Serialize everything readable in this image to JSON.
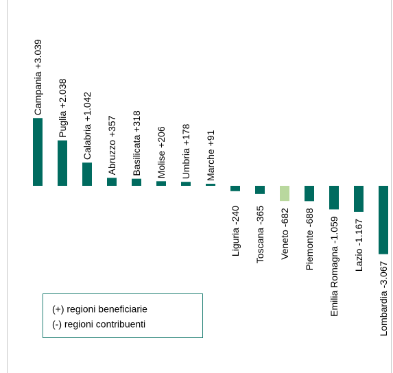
{
  "chart_data": {
    "type": "bar",
    "categories": [
      "Campania",
      "Puglia",
      "Calabria",
      "Abruzzo",
      "Basilicata",
      "Molise",
      "Umbria",
      "Marche",
      "Liguria",
      "Toscana",
      "Veneto",
      "Piemonte",
      "Emilia Romagna",
      "Lazio",
      "Lombardia"
    ],
    "values": [
      3039,
      2038,
      1042,
      357,
      318,
      206,
      178,
      91,
      -240,
      -365,
      -682,
      -688,
      -1059,
      -1167,
      -3067
    ],
    "value_labels": [
      "+3.039",
      "+2.038",
      "+1.042",
      "+357",
      "+318",
      "+206",
      "+178",
      "+91",
      "-240",
      "-365",
      "-682",
      "-688",
      "-1.059",
      "-1.167",
      "-3.067"
    ],
    "colors": [
      "#006b5f",
      "#006b5f",
      "#006b5f",
      "#006b5f",
      "#006b5f",
      "#006b5f",
      "#006b5f",
      "#006b5f",
      "#006b5f",
      "#006b5f",
      "#b9d89e",
      "#006b5f",
      "#006b5f",
      "#006b5f",
      "#006b5f"
    ],
    "annotations": [
      "(+) regioni beneficiarie",
      "(-) regioni contribuenti"
    ]
  }
}
